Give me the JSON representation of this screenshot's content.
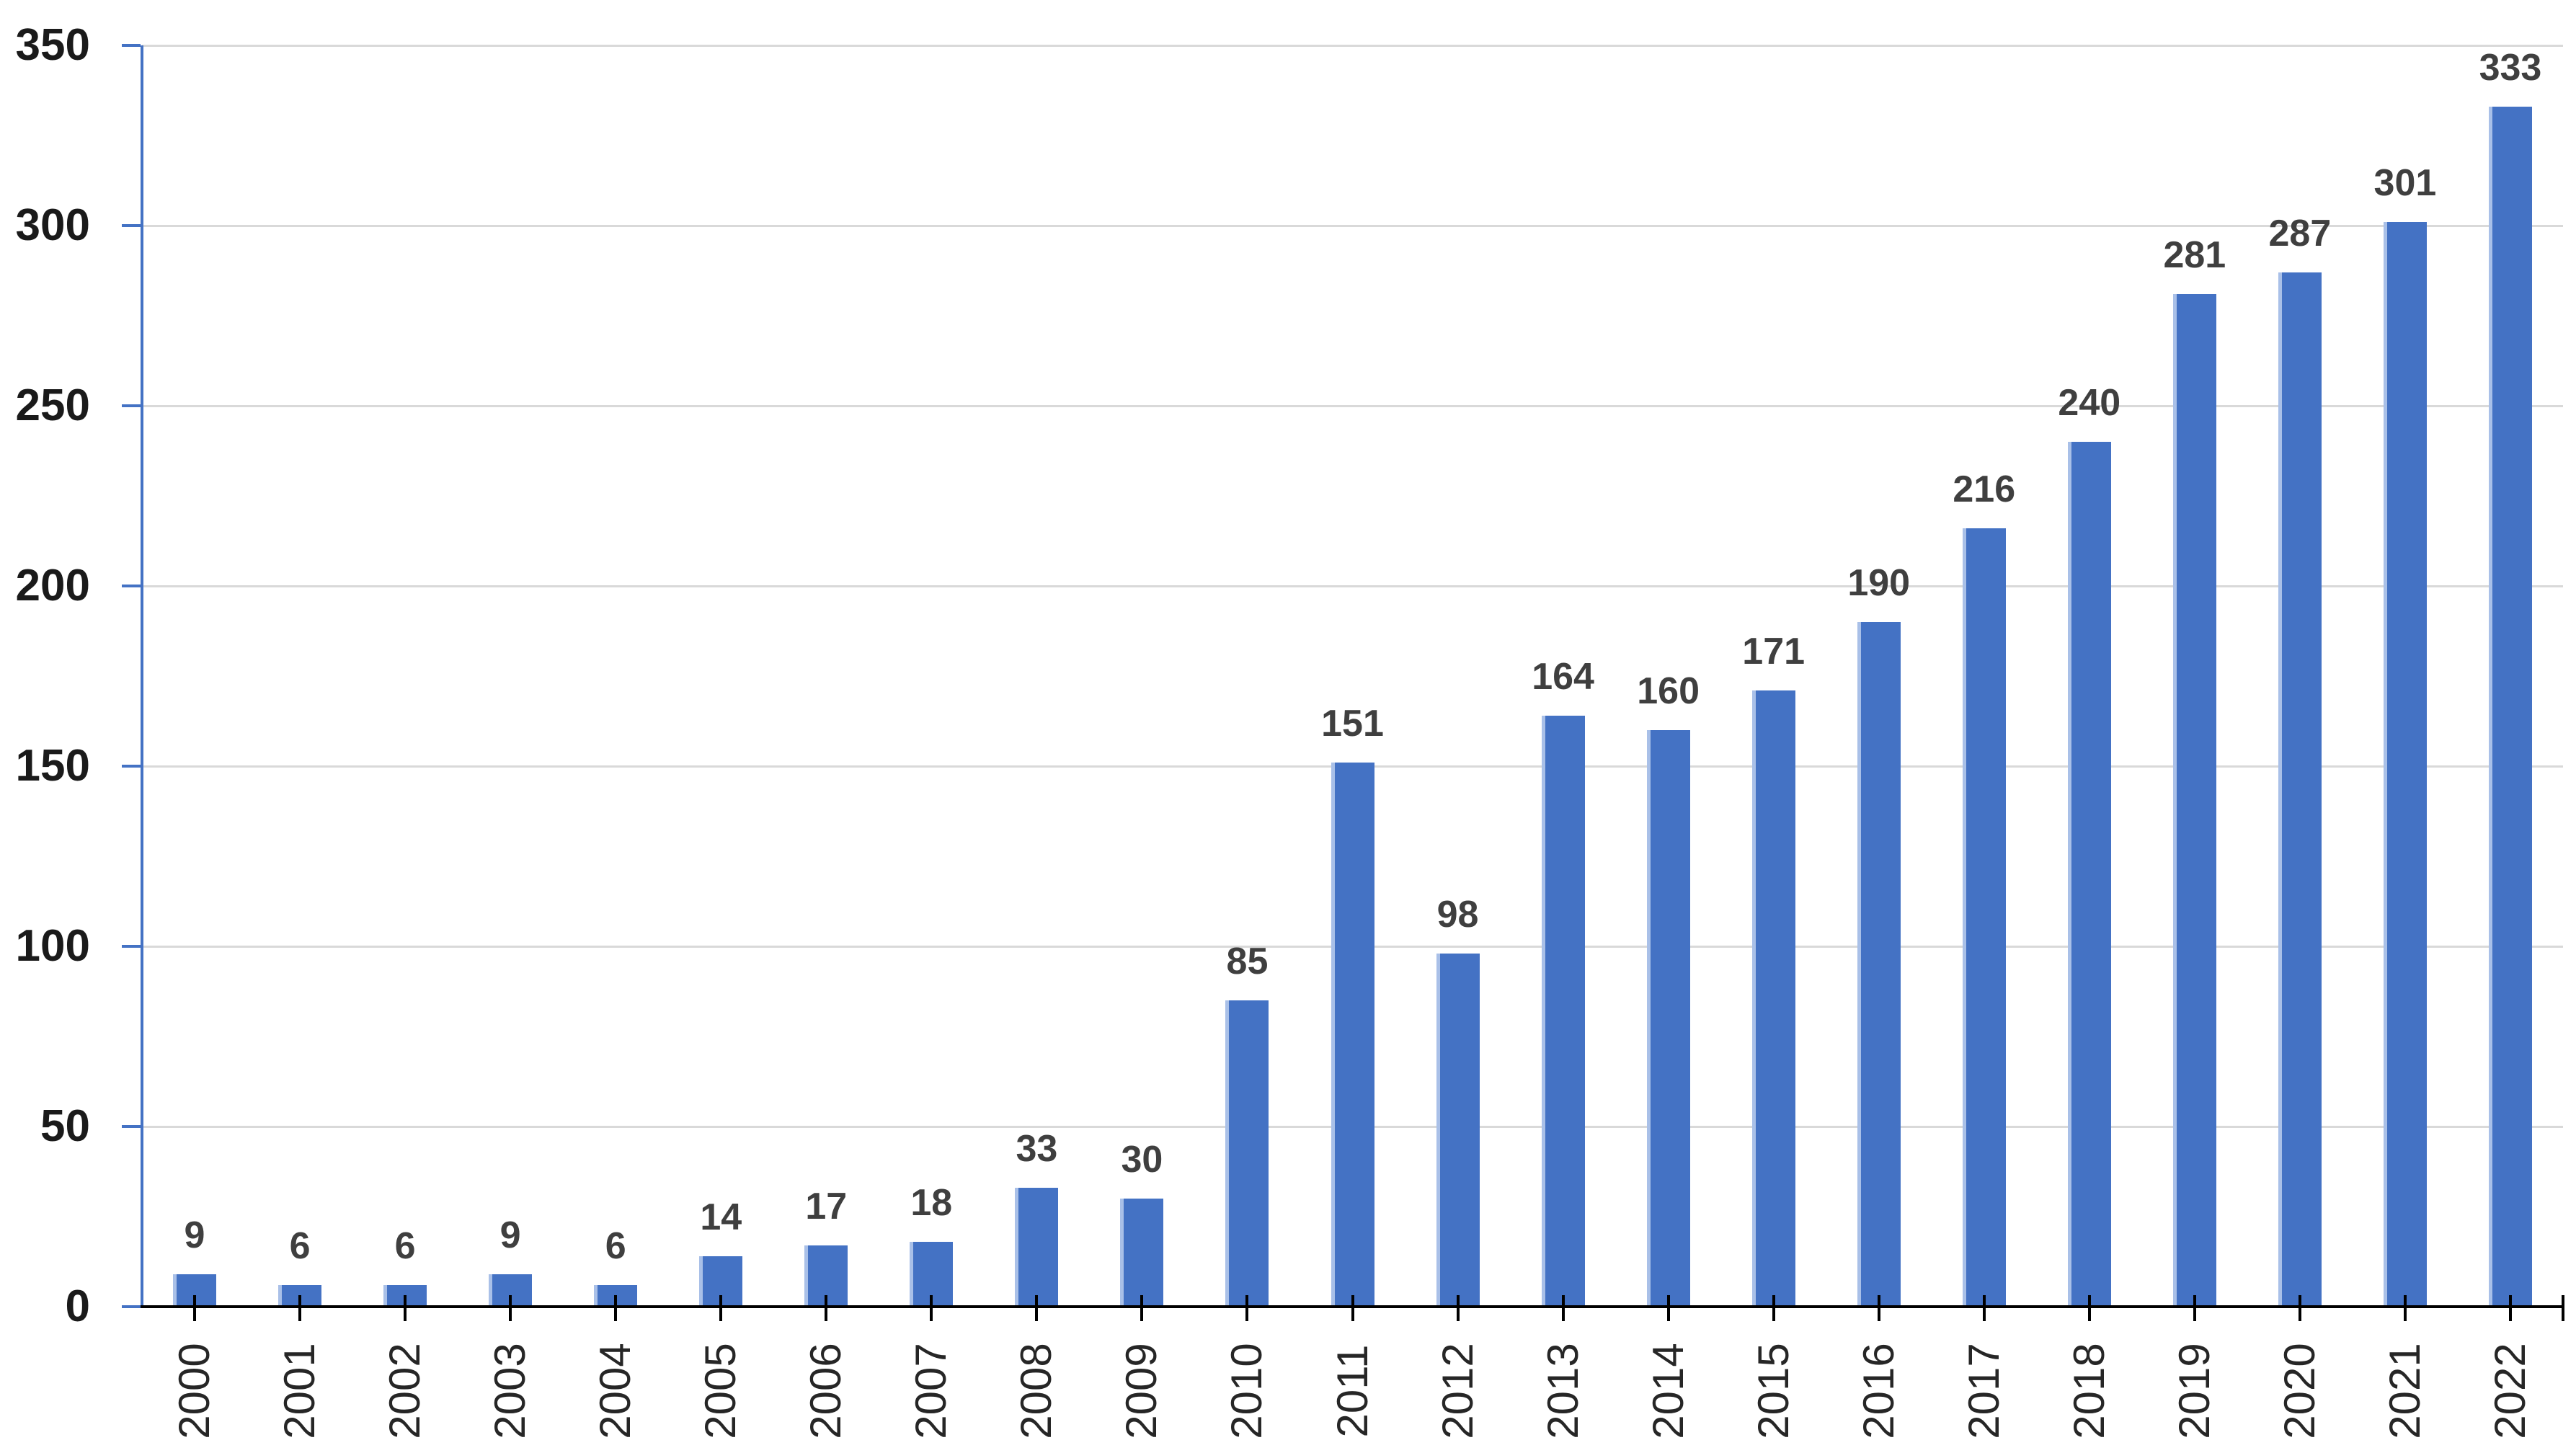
{
  "chart_data": {
    "type": "bar",
    "title": "",
    "xlabel": "",
    "ylabel": "",
    "categories": [
      "2000",
      "2001",
      "2002",
      "2003",
      "2004",
      "2005",
      "2006",
      "2007",
      "2008",
      "2009",
      "2010",
      "2011",
      "2012",
      "2013",
      "2014",
      "2015",
      "2016",
      "2017",
      "2018",
      "2019",
      "2020",
      "2021",
      "2022"
    ],
    "values": [
      9,
      6,
      6,
      9,
      6,
      14,
      17,
      18,
      33,
      30,
      85,
      151,
      98,
      164,
      160,
      171,
      190,
      216,
      240,
      281,
      287,
      301,
      333
    ],
    "data_labels_shown": true,
    "ylim": [
      0,
      350
    ],
    "yticks": [
      0,
      50,
      100,
      150,
      200,
      250,
      300,
      350
    ],
    "grid": true,
    "legend_position": "none",
    "colors": {
      "bar_fill": "#4472C4",
      "bar_left_edge": "#A9C0E8",
      "gridline": "#D9D9D9",
      "y_axis": "#4472C4",
      "x_axis": "#000000",
      "data_label": "#3F3F3F",
      "y_tick_label": "#1A1A1A",
      "x_category_label": "#262626"
    }
  }
}
